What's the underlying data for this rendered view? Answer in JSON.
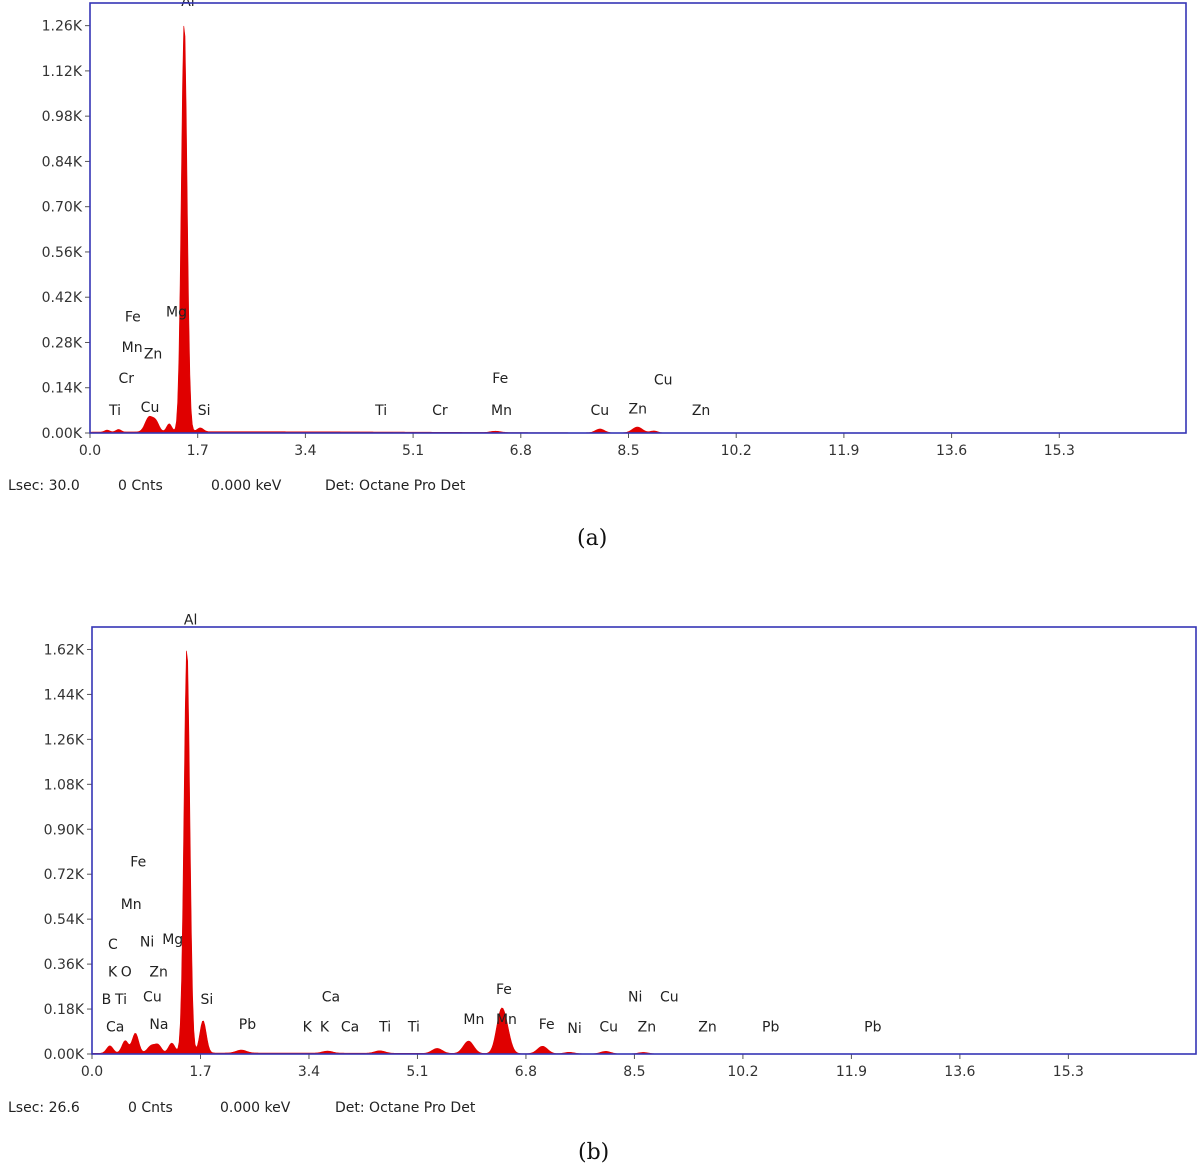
{
  "chart_data": [
    {
      "type": "area",
      "title": "",
      "xlabel": "",
      "ylabel": "",
      "xlim": [
        0,
        17.3
      ],
      "ylim": [
        0,
        1.33
      ],
      "x_ticks": [
        "0.0",
        "1.7",
        "3.4",
        "5.1",
        "6.8",
        "8.5",
        "10.2",
        "11.9",
        "13.6",
        "15.3"
      ],
      "y_ticks": [
        {
          "value": 0,
          "label": "0.00K"
        },
        {
          "value": 0.14,
          "label": "0.14K"
        },
        {
          "value": 0.28,
          "label": "0.28K"
        },
        {
          "value": 0.42,
          "label": "0.42K"
        },
        {
          "value": 0.56,
          "label": "0.56K"
        },
        {
          "value": 0.7,
          "label": "0.70K"
        },
        {
          "value": 0.84,
          "label": "0.84K"
        },
        {
          "value": 0.98,
          "label": "0.98K"
        },
        {
          "value": 1.12,
          "label": "1.12K"
        },
        {
          "value": 1.26,
          "label": "1.26K"
        }
      ],
      "series": [
        {
          "color": "#e00000",
          "peaks": [
            {
              "x": 0.27,
              "y": 0.006,
              "w": 0.04
            },
            {
              "x": 0.45,
              "y": 0.008,
              "w": 0.04
            },
            {
              "x": 0.93,
              "y": 0.045,
              "w": 0.06
            },
            {
              "x": 1.04,
              "y": 0.03,
              "w": 0.05
            },
            {
              "x": 1.25,
              "y": 0.025,
              "w": 0.04
            },
            {
              "x": 1.487,
              "y": 1.27,
              "w": 0.045
            },
            {
              "x": 1.74,
              "y": 0.012,
              "w": 0.05
            },
            {
              "x": 6.4,
              "y": 0.004,
              "w": 0.08
            },
            {
              "x": 8.05,
              "y": 0.012,
              "w": 0.07
            },
            {
              "x": 8.64,
              "y": 0.018,
              "w": 0.08
            },
            {
              "x": 8.9,
              "y": 0.006,
              "w": 0.06
            }
          ]
        }
      ],
      "annotations": [
        {
          "text": "Al",
          "x": 1.44,
          "y": 1.32
        },
        {
          "text": "Fe",
          "x": 0.55,
          "y": 0.345
        },
        {
          "text": "Mg",
          "x": 1.2,
          "y": 0.36
        },
        {
          "text": "Mn",
          "x": 0.5,
          "y": 0.25
        },
        {
          "text": "Zn",
          "x": 0.85,
          "y": 0.23
        },
        {
          "text": "Cr",
          "x": 0.45,
          "y": 0.155
        },
        {
          "text": "Ti",
          "x": 0.3,
          "y": 0.055
        },
        {
          "text": "Cu",
          "x": 0.8,
          "y": 0.065
        },
        {
          "text": "Si",
          "x": 1.7,
          "y": 0.055
        },
        {
          "text": "Ti",
          "x": 4.5,
          "y": 0.055
        },
        {
          "text": "Cr",
          "x": 5.4,
          "y": 0.055
        },
        {
          "text": "Fe",
          "x": 6.35,
          "y": 0.155
        },
        {
          "text": "Mn",
          "x": 6.33,
          "y": 0.055
        },
        {
          "text": "Cu",
          "x": 7.9,
          "y": 0.055
        },
        {
          "text": "Zn",
          "x": 8.5,
          "y": 0.06
        },
        {
          "text": "Cu",
          "x": 8.9,
          "y": 0.15
        },
        {
          "text": "Zn",
          "x": 9.5,
          "y": 0.055
        }
      ]
    },
    {
      "type": "area",
      "title": "",
      "xlabel": "",
      "ylabel": "",
      "xlim": [
        0,
        17.3
      ],
      "ylim": [
        0,
        1.71
      ],
      "x_ticks": [
        "0.0",
        "1.7",
        "3.4",
        "5.1",
        "6.8",
        "8.5",
        "10.2",
        "11.9",
        "13.6",
        "15.3"
      ],
      "y_ticks": [
        {
          "value": 0,
          "label": "0.00K"
        },
        {
          "value": 0.18,
          "label": "0.18K"
        },
        {
          "value": 0.36,
          "label": "0.36K"
        },
        {
          "value": 0.54,
          "label": "0.54K"
        },
        {
          "value": 0.72,
          "label": "0.72K"
        },
        {
          "value": 0.9,
          "label": "0.90K"
        },
        {
          "value": 1.08,
          "label": "1.08K"
        },
        {
          "value": 1.26,
          "label": "1.26K"
        },
        {
          "value": 1.44,
          "label": "1.44K"
        },
        {
          "value": 1.62,
          "label": "1.62K"
        }
      ],
      "series": [
        {
          "color": "#e00000",
          "peaks": [
            {
              "x": 0.28,
              "y": 0.03,
              "w": 0.05
            },
            {
              "x": 0.52,
              "y": 0.05,
              "w": 0.05
            },
            {
              "x": 0.68,
              "y": 0.08,
              "w": 0.05
            },
            {
              "x": 0.93,
              "y": 0.03,
              "w": 0.06
            },
            {
              "x": 1.04,
              "y": 0.03,
              "w": 0.05
            },
            {
              "x": 1.25,
              "y": 0.04,
              "w": 0.05
            },
            {
              "x": 1.487,
              "y": 1.63,
              "w": 0.045
            },
            {
              "x": 1.74,
              "y": 0.13,
              "w": 0.05
            },
            {
              "x": 2.34,
              "y": 0.012,
              "w": 0.08
            },
            {
              "x": 3.69,
              "y": 0.008,
              "w": 0.08
            },
            {
              "x": 4.51,
              "y": 0.01,
              "w": 0.08
            },
            {
              "x": 5.41,
              "y": 0.02,
              "w": 0.08
            },
            {
              "x": 5.9,
              "y": 0.05,
              "w": 0.08
            },
            {
              "x": 6.4,
              "y": 0.14,
              "w": 0.07
            },
            {
              "x": 6.49,
              "y": 0.08,
              "w": 0.07
            },
            {
              "x": 7.06,
              "y": 0.03,
              "w": 0.08
            },
            {
              "x": 7.48,
              "y": 0.006,
              "w": 0.08
            },
            {
              "x": 8.05,
              "y": 0.01,
              "w": 0.08
            },
            {
              "x": 8.64,
              "y": 0.006,
              "w": 0.08
            }
          ]
        }
      ],
      "annotations": [
        {
          "text": "Al",
          "x": 1.44,
          "y": 1.72
        },
        {
          "text": "Fe",
          "x": 0.6,
          "y": 0.75
        },
        {
          "text": "Mn",
          "x": 0.45,
          "y": 0.58
        },
        {
          "text": "C",
          "x": 0.25,
          "y": 0.42
        },
        {
          "text": "Ni",
          "x": 0.75,
          "y": 0.43
        },
        {
          "text": "Mg",
          "x": 1.1,
          "y": 0.44
        },
        {
          "text": "K",
          "x": 0.25,
          "y": 0.31
        },
        {
          "text": "O",
          "x": 0.45,
          "y": 0.31
        },
        {
          "text": "Zn",
          "x": 0.9,
          "y": 0.31
        },
        {
          "text": "B",
          "x": 0.15,
          "y": 0.2
        },
        {
          "text": "Ti",
          "x": 0.36,
          "y": 0.2
        },
        {
          "text": "Cu",
          "x": 0.8,
          "y": 0.21
        },
        {
          "text": "Si",
          "x": 1.7,
          "y": 0.2
        },
        {
          "text": "Ca",
          "x": 0.22,
          "y": 0.09
        },
        {
          "text": "Na",
          "x": 0.9,
          "y": 0.1
        },
        {
          "text": "Pb",
          "x": 2.3,
          "y": 0.1
        },
        {
          "text": "K",
          "x": 3.3,
          "y": 0.09
        },
        {
          "text": "K",
          "x": 3.57,
          "y": 0.09
        },
        {
          "text": "Ca",
          "x": 3.6,
          "y": 0.21
        },
        {
          "text": "Ca",
          "x": 3.9,
          "y": 0.09
        },
        {
          "text": "Ti",
          "x": 4.5,
          "y": 0.09
        },
        {
          "text": "Ti",
          "x": 4.95,
          "y": 0.09
        },
        {
          "text": "Mn",
          "x": 5.82,
          "y": 0.12
        },
        {
          "text": "Fe",
          "x": 6.33,
          "y": 0.24
        },
        {
          "text": "Mn",
          "x": 6.33,
          "y": 0.12
        },
        {
          "text": "Fe",
          "x": 7.0,
          "y": 0.1
        },
        {
          "text": "Ni",
          "x": 7.45,
          "y": 0.085
        },
        {
          "text": "Cu",
          "x": 7.95,
          "y": 0.09
        },
        {
          "text": "Ni",
          "x": 8.4,
          "y": 0.21
        },
        {
          "text": "Cu",
          "x": 8.9,
          "y": 0.21
        },
        {
          "text": "Zn",
          "x": 8.55,
          "y": 0.09
        },
        {
          "text": "Zn",
          "x": 9.5,
          "y": 0.09
        },
        {
          "text": "Pb",
          "x": 10.5,
          "y": 0.09
        },
        {
          "text": "Pb",
          "x": 12.1,
          "y": 0.09
        }
      ]
    }
  ],
  "panels": [
    {
      "status": {
        "lsec": "Lsec: 30.0",
        "counts": "0 Cnts",
        "energy": "0.000 keV",
        "detector": "Det: Octane Pro Det"
      },
      "caption": "(a)"
    },
    {
      "status": {
        "lsec": "Lsec: 26.6",
        "counts": "0 Cnts",
        "energy": "0.000 keV",
        "detector": "Det: Octane Pro Det"
      },
      "caption": "(b)"
    }
  ]
}
